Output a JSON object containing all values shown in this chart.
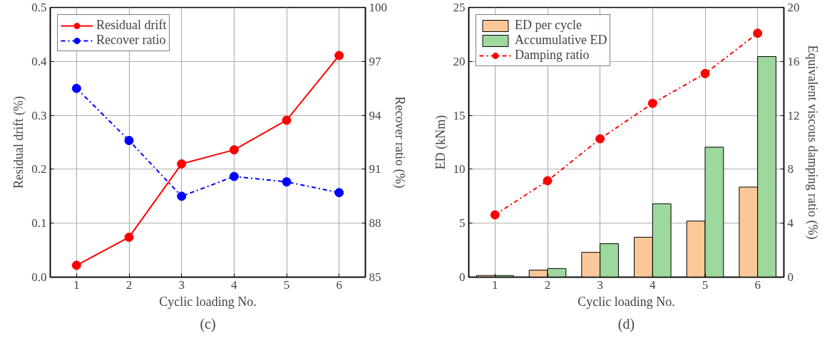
{
  "chart_data": [
    {
      "type": "line",
      "xlabel": "Cyclic loading No.",
      "ylabel": "Residual drift (%)",
      "y2label": "Recover ratio (%)",
      "x": [
        1,
        2,
        3,
        4,
        5,
        6
      ],
      "xlim": [
        0.5,
        6.5
      ],
      "xticks": [
        1,
        2,
        3,
        4,
        5,
        6
      ],
      "ylim": [
        0,
        0.5
      ],
      "yticks": [
        {
          "value": 0,
          "label": "0.0"
        },
        0.1,
        0.2,
        0.3,
        0.4,
        0.5
      ],
      "y2lim": [
        85,
        100
      ],
      "y2ticks": [
        85,
        88,
        91,
        94,
        97,
        100
      ],
      "series": [
        {
          "name": "Residual drift",
          "color": "#ff0000",
          "line_style": "solid",
          "values": [
            0.022,
            0.074,
            0.21,
            0.236,
            0.291,
            0.411
          ]
        },
        {
          "name": "Recover ratio",
          "axis": "y2",
          "color": "#0000ff",
          "line_style": "dashdot",
          "values": [
            95.5,
            92.6,
            89.5,
            90.6,
            90.3,
            89.7
          ]
        }
      ],
      "marker": "circle",
      "grid": true,
      "legend": "top left",
      "annotations": [
        "(c)"
      ]
    },
    {
      "type": "bar",
      "xlabel": "Cyclic loading No.",
      "ylabel": "ED (kNm)",
      "y2label": "Equivalent viscous damping ratio (%)",
      "x": [
        1,
        2,
        3,
        4,
        5,
        6
      ],
      "xlim": [
        0.5,
        6.5
      ],
      "xticks": [
        1,
        2,
        3,
        4,
        5,
        6
      ],
      "ylim": [
        0,
        25
      ],
      "yticks": [
        0,
        5,
        10,
        15,
        20,
        25
      ],
      "y2lim": [
        0,
        20
      ],
      "y2ticks": [
        0,
        4,
        8,
        12,
        16,
        20
      ],
      "series": [
        {
          "name": "ED per cycle",
          "color": "#fac898",
          "values": [
            0.15,
            0.65,
            2.3,
            3.7,
            5.2,
            8.35
          ]
        },
        {
          "name": "Accumulative ED",
          "color": "#9dd89d",
          "values": [
            0.15,
            0.8,
            3.1,
            6.8,
            12.05,
            20.45
          ]
        },
        {
          "name": "Damping ratio",
          "type": "line",
          "axis": "y2",
          "color": "#ff0000",
          "line_style": "dashdot",
          "values": [
            4.62,
            7.15,
            10.26,
            12.89,
            15.1,
            18.09
          ]
        }
      ],
      "marker": "circle",
      "grid": true,
      "legend": "top left",
      "annotations": [
        "(d)"
      ]
    }
  ]
}
